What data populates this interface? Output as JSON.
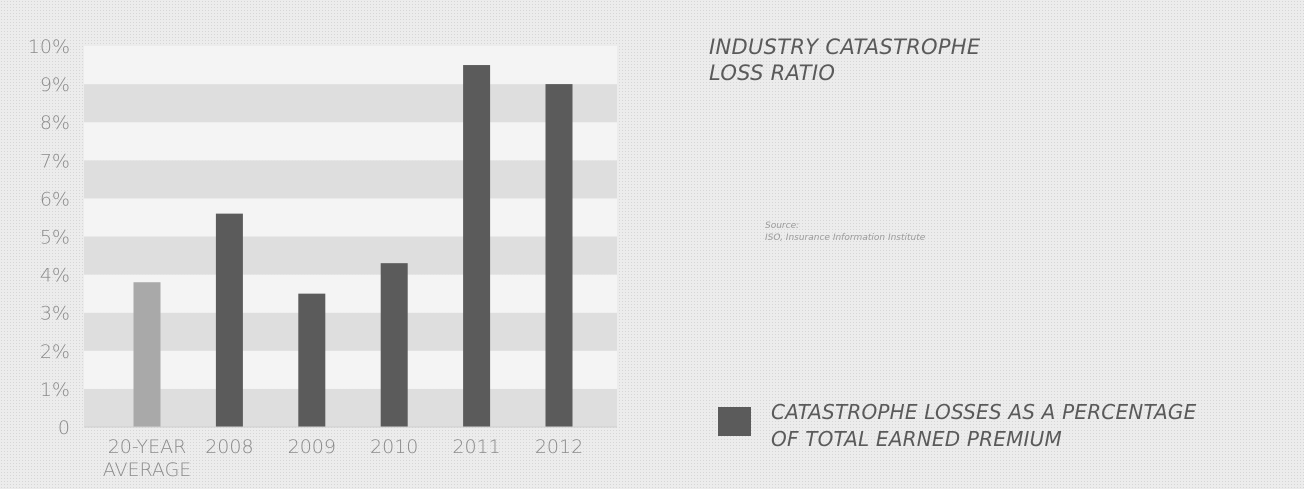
{
  "chart_data": {
    "type": "bar",
    "title_lines": [
      "INDUSTRY CATASTROPHE",
      "LOSS RATIO"
    ],
    "categories": [
      [
        "20-YEAR",
        "AVERAGE"
      ],
      [
        "2008"
      ],
      [
        "2009"
      ],
      [
        "2010"
      ],
      [
        "2011"
      ],
      [
        "2012"
      ]
    ],
    "series": [
      {
        "name": "CATASTROPHE LOSSES AS A PERCENTAGE OF TOTAL EARNED PREMIUM",
        "values": [
          3.8,
          5.6,
          3.5,
          4.3,
          9.5,
          9.0
        ]
      }
    ],
    "bar_colors": [
      "#a9a9a9",
      "#5b5b5b",
      "#5b5b5b",
      "#5b5b5b",
      "#5b5b5b",
      "#5b5b5b"
    ],
    "yticks": [
      "0",
      "1%",
      "2%",
      "3%",
      "4%",
      "5%",
      "6%",
      "7%",
      "8%",
      "9%",
      "10%"
    ],
    "ylim": [
      0,
      10
    ],
    "grid": "alternating horizontal bands",
    "legend": {
      "lines": [
        "CATASTROPHE LOSSES AS A PERCENTAGE",
        "OF TOTAL EARNED PREMIUM"
      ],
      "placement": "bottom-right",
      "color": "#5b5b5b"
    },
    "source_lines": [
      "Source:",
      "ISO, Insurance Information Institute"
    ],
    "xlabel": "",
    "ylabel": ""
  }
}
